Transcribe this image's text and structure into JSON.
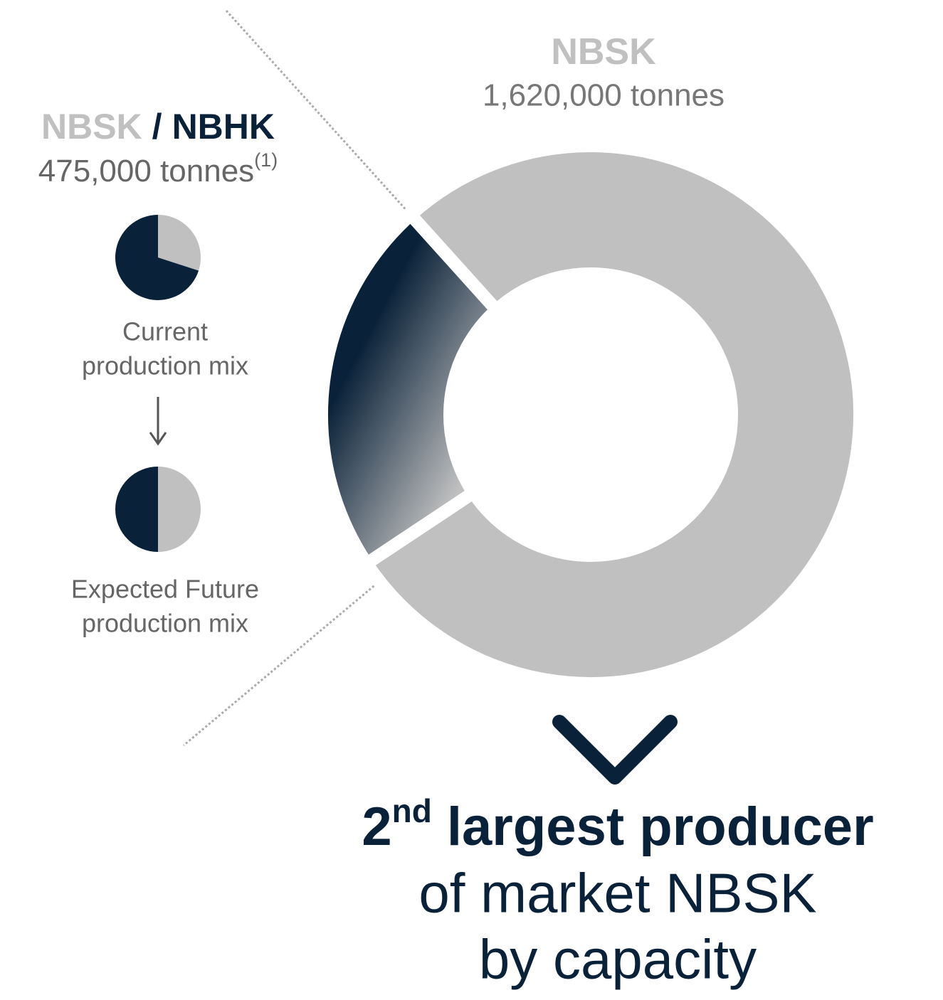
{
  "chart_data": [
    {
      "type": "donut",
      "label_parts": [
        [
          "NBSK"
        ],
        [
          "NBSK",
          "/",
          "NBHK"
        ]
      ],
      "values": [
        1620000,
        475000
      ],
      "value_labels": [
        "1,620,000 tonnes",
        "475,000 tonnes"
      ],
      "footnote": "(1)",
      "colors": [
        "#c0c0c0",
        "#0a2239"
      ]
    },
    {
      "type": "pie",
      "caption": [
        "Current",
        "production mix"
      ],
      "values": [
        30,
        70
      ],
      "colors": [
        "#c0c0c0",
        "#0a2239"
      ]
    },
    {
      "type": "pie",
      "caption": [
        "Expected Future",
        "production mix"
      ],
      "values": [
        50,
        50
      ],
      "colors": [
        "#c0c0c0",
        "#0a2239"
      ]
    }
  ],
  "conclusion": {
    "line1": [
      "2",
      "nd",
      " largest producer"
    ],
    "line2": "of market NBSK",
    "line3": "by capacity"
  }
}
